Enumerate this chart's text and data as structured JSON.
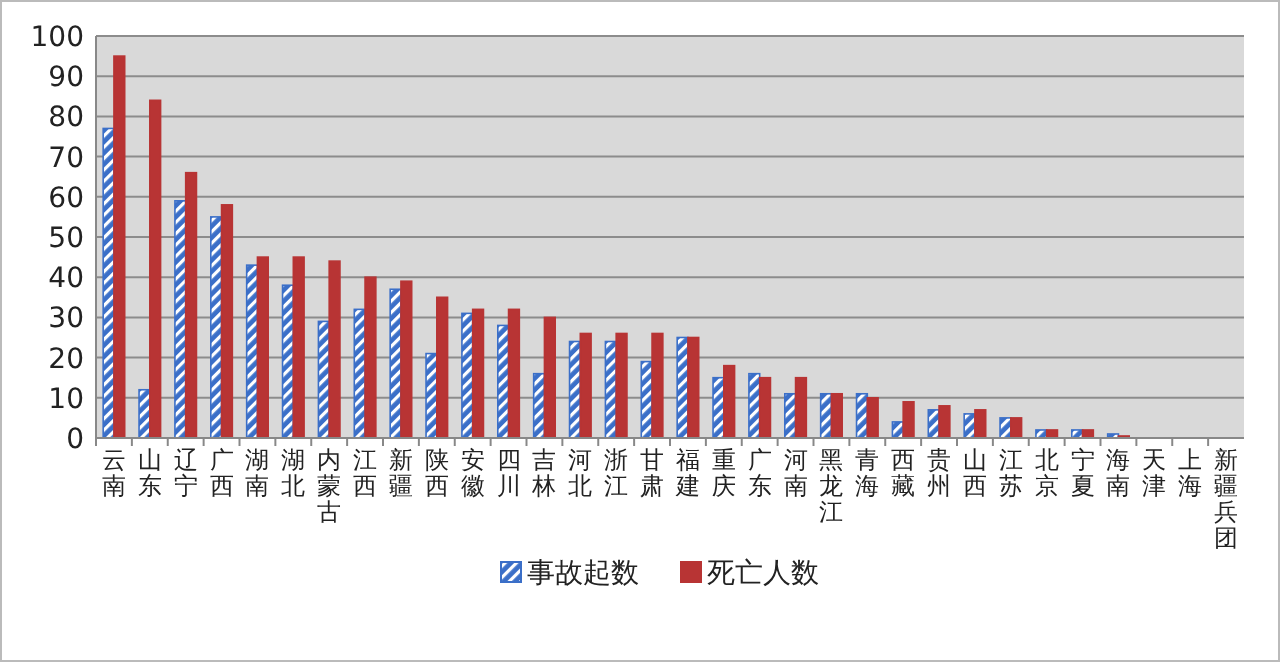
{
  "chart_data": {
    "type": "bar",
    "categories": [
      "云南",
      "山东",
      "辽宁",
      "广西",
      "湖南",
      "湖北",
      "内蒙古",
      "江西",
      "新疆",
      "陕西",
      "安徽",
      "四川",
      "吉林",
      "河北",
      "浙江",
      "甘肃",
      "福建",
      "重庆",
      "广东",
      "河南",
      "黑龙江",
      "青海",
      "西藏",
      "贵州",
      "山西",
      "江苏",
      "北京",
      "宁夏",
      "海南",
      "天津",
      "上海",
      "新疆兵团"
    ],
    "series": [
      {
        "name": "事故起数",
        "color": "#3b6fc8",
        "values": [
          77,
          12,
          59,
          55,
          43,
          38,
          29,
          32,
          37,
          21,
          31,
          28,
          16,
          24,
          24,
          19,
          25,
          15,
          16,
          11,
          11,
          11,
          4,
          7,
          6,
          5,
          2,
          2,
          1,
          0,
          0,
          0
        ]
      },
      {
        "name": "死亡人数",
        "color": "#b83434",
        "values": [
          95,
          84,
          66,
          58,
          45,
          45,
          44,
          40,
          39,
          35,
          32,
          32,
          30,
          26,
          26,
          26,
          25,
          18,
          15,
          15,
          11,
          10,
          9,
          8,
          7,
          5,
          2,
          2,
          0.5,
          0,
          0,
          0
        ]
      }
    ],
    "ylim": [
      0,
      100
    ],
    "yticks": [
      0,
      10,
      20,
      30,
      40,
      50,
      60,
      70,
      80,
      90,
      100
    ],
    "grid": "y",
    "legend": "bottom"
  }
}
